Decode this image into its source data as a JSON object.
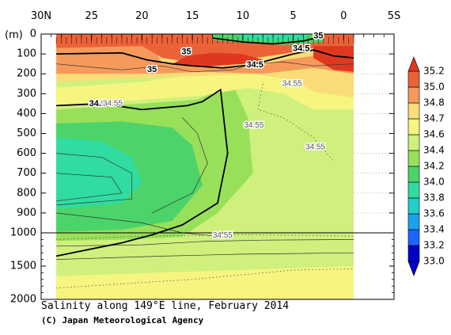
{
  "chart_data": {
    "type": "heatmap",
    "title": "Salinity along 149°E line, February 2014",
    "credit": "(C) Japan Meteorological Agency",
    "y_unit_label": "(m)",
    "x_axis": {
      "position": "top",
      "range": [
        30,
        -5
      ],
      "ticks": [
        30,
        25,
        20,
        15,
        10,
        5,
        0,
        -5
      ],
      "tick_labels": [
        "30N",
        "25",
        "20",
        "15",
        "10",
        "5",
        "0",
        "5S"
      ],
      "data_extent": [
        28.5,
        -1
      ]
    },
    "y_axis": {
      "inverted": true,
      "segments": [
        {
          "range": [
            0,
            1000
          ],
          "ticks": [
            0,
            100,
            200,
            300,
            400,
            500,
            600,
            700,
            800,
            900,
            1000
          ]
        },
        {
          "range": [
            1000,
            2000
          ],
          "ticks": [
            1500,
            2000
          ]
        }
      ],
      "tick_labels": [
        "0",
        "100",
        "200",
        "300",
        "400",
        "500",
        "600",
        "700",
        "800",
        "900",
        "1000",
        "1500",
        "2000"
      ]
    },
    "colorbar": {
      "levels": [
        33.0,
        33.2,
        33.4,
        33.6,
        33.8,
        34.0,
        34.2,
        34.4,
        34.6,
        34.7,
        34.8,
        35.0,
        35.2
      ],
      "colors": [
        "#0000cc",
        "#1a66ff",
        "#1aa0f0",
        "#20d0c8",
        "#30dca0",
        "#4cd46a",
        "#98e05a",
        "#cff07d",
        "#f5f57f",
        "#fadc78",
        "#f69a5b",
        "#ec6238",
        "#e03820"
      ],
      "tick_labels": [
        "33.0",
        "33.2",
        "33.4",
        "33.6",
        "33.8",
        "34.0",
        "34.2",
        "34.4",
        "34.6",
        "34.7",
        "34.8",
        "35.0",
        "35.2"
      ]
    },
    "contour_labels": [
      {
        "text": "35",
        "lat": 2.5,
        "depth": 10
      },
      {
        "text": "35",
        "lat": 15.6,
        "depth": 90
      },
      {
        "text": "35",
        "lat": 19.0,
        "depth": 180
      },
      {
        "text": "34.5",
        "lat": 4.2,
        "depth": 75
      },
      {
        "text": "34.5",
        "lat": 8.8,
        "depth": 155
      },
      {
        "text": "34.5",
        "lat": 24.4,
        "depth": 350
      },
      {
        "text": "34.55",
        "lat": 22.9,
        "depth": 350
      },
      {
        "text": "34.55",
        "lat": 5.1,
        "depth": 250
      },
      {
        "text": "34.55",
        "lat": 8.9,
        "depth": 460
      },
      {
        "text": "34.55",
        "lat": 2.8,
        "depth": 570
      },
      {
        "text": "34.55",
        "lat": 12.0,
        "depth": 1040
      }
    ]
  }
}
